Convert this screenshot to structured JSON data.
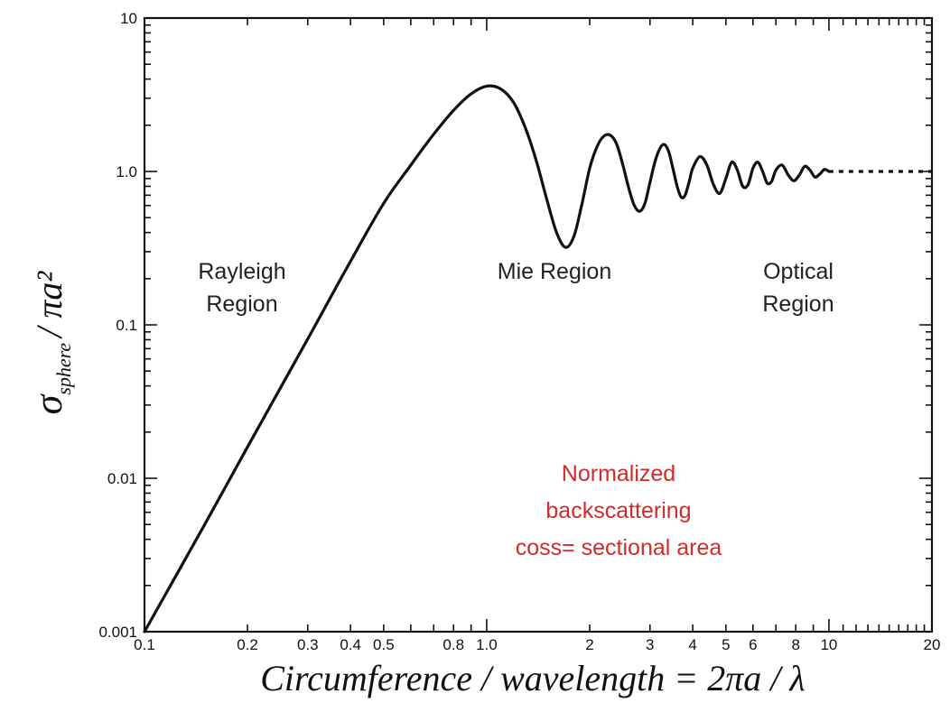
{
  "chart_data": {
    "type": "line",
    "x_scale": "log",
    "y_scale": "log",
    "xlim": [
      0.1,
      20
    ],
    "ylim": [
      0.001,
      10
    ],
    "xlabel": "Circumference / wavelength = 2πa / λ",
    "ylabel_main": "σ",
    "ylabel_sub": "sphere",
    "ylabel_tail": "/ πa²",
    "x_tick_labels": [
      "0.1",
      "0.2",
      "0.3",
      "0.4",
      "0.5",
      "0.8",
      "1.0",
      "2",
      "3",
      "4",
      "5",
      "6",
      "8",
      "10",
      "20"
    ],
    "y_tick_labels": [
      "0.001",
      "0.01",
      "0.1",
      "1.0",
      "10"
    ],
    "regions": [
      {
        "lines": [
          "Rayleigh",
          "Region"
        ]
      },
      {
        "lines": [
          "Mie Region"
        ]
      },
      {
        "lines": [
          "Optical",
          "Region"
        ]
      }
    ],
    "annotation": {
      "lines": [
        "Normalized",
        "backscattering",
        "coss= sectional area"
      ],
      "color": "#d22b2b"
    },
    "series": [
      {
        "style": "solid",
        "x": [
          0.1,
          0.15,
          0.2,
          0.3,
          0.4,
          0.5,
          0.6,
          0.7,
          0.8,
          0.9,
          1.0,
          1.1,
          1.2,
          1.3,
          1.4,
          1.5,
          1.6,
          1.7,
          1.8,
          1.9,
          2.0,
          2.1,
          2.2,
          2.3,
          2.4,
          2.5,
          2.6,
          2.7,
          2.8,
          2.9,
          3.0,
          3.1,
          3.2,
          3.3,
          3.4,
          3.5,
          3.6,
          3.7,
          3.8,
          3.9,
          4.0,
          4.2,
          4.4,
          4.6,
          4.8,
          5.0,
          5.2,
          5.4,
          5.6,
          5.8,
          6.0,
          6.2,
          6.4,
          6.6,
          6.8,
          7.0,
          7.3,
          7.6,
          7.9,
          8.2,
          8.5,
          8.8,
          9.1,
          9.4,
          9.7,
          10.0
        ],
        "y": [
          0.001,
          0.005,
          0.016,
          0.081,
          0.26,
          0.62,
          1.1,
          1.75,
          2.5,
          3.2,
          3.6,
          3.45,
          2.8,
          1.9,
          1.15,
          0.65,
          0.4,
          0.32,
          0.38,
          0.62,
          1.05,
          1.45,
          1.7,
          1.72,
          1.5,
          1.1,
          0.78,
          0.6,
          0.55,
          0.62,
          0.85,
          1.15,
          1.4,
          1.5,
          1.35,
          1.05,
          0.8,
          0.68,
          0.7,
          0.85,
          1.05,
          1.25,
          1.1,
          0.82,
          0.72,
          0.9,
          1.15,
          1.02,
          0.8,
          0.82,
          1.05,
          1.15,
          1.0,
          0.84,
          0.86,
          1.02,
          1.1,
          0.95,
          0.87,
          0.95,
          1.08,
          1.02,
          0.92,
          0.96,
          1.03,
          1.0
        ]
      },
      {
        "style": "dashed",
        "x": [
          10,
          20
        ],
        "y": [
          1.0,
          1.0
        ]
      }
    ]
  }
}
